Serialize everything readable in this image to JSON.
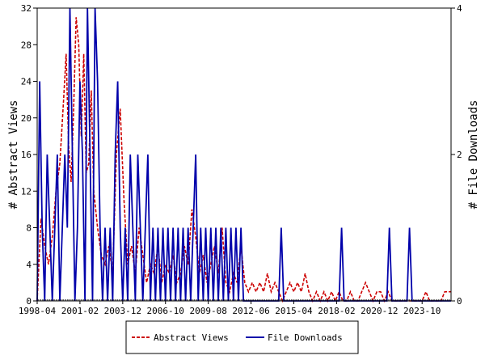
{
  "chart_data": {
    "type": "line",
    "ylabel_left": "# Abstract Views",
    "ylabel_right": "# File Downloads",
    "x_tick_labels": [
      "1998-04",
      "2001-02",
      "2003-12",
      "2006-10",
      "2009-08",
      "2012-06",
      "2015-04",
      "2018-02",
      "2020-12",
      "2023-10"
    ],
    "x_range": [
      "1998-04",
      "2025-09"
    ],
    "y_left": {
      "range": [
        0,
        32
      ],
      "ticks": [
        0,
        4,
        8,
        12,
        16,
        20,
        24,
        28,
        32
      ]
    },
    "y_right": {
      "range": [
        0,
        4
      ],
      "ticks": [
        0,
        2,
        4
      ]
    },
    "grid": false,
    "legend": "bottom-center",
    "colors": {
      "abstract_views": "#cc0000",
      "file_downloads": "#0000aa"
    },
    "series": [
      {
        "name": "Abstract Views",
        "axis": "left",
        "style": "dashed",
        "points": [
          [
            "1998-04",
            0
          ],
          [
            "1998-07",
            9
          ],
          [
            "1998-10",
            6
          ],
          [
            "1999-01",
            4
          ],
          [
            "1999-04",
            7
          ],
          [
            "1999-07",
            12
          ],
          [
            "1999-10",
            15
          ],
          [
            "2000-01",
            22
          ],
          [
            "2000-03",
            27
          ],
          [
            "2000-05",
            17
          ],
          [
            "2000-07",
            13
          ],
          [
            "2000-09",
            21
          ],
          [
            "2000-11",
            31
          ],
          [
            "2001-01",
            28
          ],
          [
            "2001-03",
            18
          ],
          [
            "2001-05",
            27
          ],
          [
            "2001-07",
            14
          ],
          [
            "2001-09",
            15
          ],
          [
            "2001-11",
            23
          ],
          [
            "2002-01",
            12
          ],
          [
            "2002-04",
            8
          ],
          [
            "2002-07",
            5
          ],
          [
            "2002-10",
            4
          ],
          [
            "2003-01",
            6
          ],
          [
            "2003-04",
            3
          ],
          [
            "2003-07",
            16
          ],
          [
            "2003-10",
            21
          ],
          [
            "2004-01",
            11
          ],
          [
            "2004-04",
            4
          ],
          [
            "2004-07",
            6
          ],
          [
            "2004-10",
            3
          ],
          [
            "2005-01",
            8
          ],
          [
            "2005-04",
            5
          ],
          [
            "2005-07",
            2
          ],
          [
            "2005-10",
            4
          ],
          [
            "2006-01",
            3
          ],
          [
            "2006-04",
            6
          ],
          [
            "2006-07",
            2
          ],
          [
            "2006-10",
            4
          ],
          [
            "2007-01",
            3
          ],
          [
            "2007-04",
            5
          ],
          [
            "2007-07",
            2
          ],
          [
            "2007-10",
            3
          ],
          [
            "2008-01",
            6
          ],
          [
            "2008-04",
            4
          ],
          [
            "2008-07",
            10
          ],
          [
            "2008-10",
            7
          ],
          [
            "2009-01",
            3
          ],
          [
            "2009-04",
            5
          ],
          [
            "2009-07",
            2
          ],
          [
            "2009-10",
            4
          ],
          [
            "2010-01",
            6
          ],
          [
            "2010-04",
            3
          ],
          [
            "2010-07",
            8
          ],
          [
            "2010-10",
            2
          ],
          [
            "2011-01",
            1
          ],
          [
            "2011-04",
            3
          ],
          [
            "2011-07",
            2
          ],
          [
            "2011-10",
            6
          ],
          [
            "2012-01",
            2
          ],
          [
            "2012-04",
            1
          ],
          [
            "2012-07",
            2
          ],
          [
            "2012-10",
            1
          ],
          [
            "2013-01",
            2
          ],
          [
            "2013-04",
            1
          ],
          [
            "2013-07",
            3
          ],
          [
            "2013-10",
            1
          ],
          [
            "2014-01",
            2
          ],
          [
            "2014-04",
            1
          ],
          [
            "2014-07",
            0
          ],
          [
            "2014-10",
            1
          ],
          [
            "2015-01",
            2
          ],
          [
            "2015-04",
            1
          ],
          [
            "2015-07",
            2
          ],
          [
            "2015-10",
            1
          ],
          [
            "2016-01",
            3
          ],
          [
            "2016-04",
            1
          ],
          [
            "2016-07",
            0
          ],
          [
            "2016-10",
            1
          ],
          [
            "2017-01",
            0
          ],
          [
            "2017-04",
            1
          ],
          [
            "2017-07",
            0
          ],
          [
            "2017-10",
            1
          ],
          [
            "2018-01",
            0
          ],
          [
            "2018-04",
            1
          ],
          [
            "2018-07",
            0
          ],
          [
            "2018-10",
            0
          ],
          [
            "2019-01",
            1
          ],
          [
            "2019-04",
            0
          ],
          [
            "2019-07",
            0
          ],
          [
            "2019-10",
            1
          ],
          [
            "2020-01",
            2
          ],
          [
            "2020-04",
            1
          ],
          [
            "2020-07",
            0
          ],
          [
            "2020-10",
            1
          ],
          [
            "2021-01",
            1
          ],
          [
            "2021-04",
            0
          ],
          [
            "2021-07",
            1
          ],
          [
            "2021-10",
            0
          ],
          [
            "2022-01",
            0
          ],
          [
            "2022-04",
            0
          ],
          [
            "2022-07",
            0
          ],
          [
            "2022-10",
            0
          ],
          [
            "2023-01",
            0
          ],
          [
            "2023-04",
            0
          ],
          [
            "2023-07",
            0
          ],
          [
            "2023-10",
            0
          ],
          [
            "2024-01",
            1
          ],
          [
            "2024-04",
            0
          ],
          [
            "2024-07",
            0
          ],
          [
            "2024-10",
            0
          ],
          [
            "2025-01",
            0
          ],
          [
            "2025-04",
            1
          ],
          [
            "2025-09",
            1
          ]
        ]
      },
      {
        "name": "File Downloads",
        "axis": "right",
        "style": "solid",
        "points": [
          [
            "1998-04",
            0
          ],
          [
            "1998-06",
            3
          ],
          [
            "1998-08",
            1
          ],
          [
            "1998-10",
            0
          ],
          [
            "1998-12",
            2
          ],
          [
            "1999-02",
            1
          ],
          [
            "1999-04",
            0
          ],
          [
            "1999-06",
            1
          ],
          [
            "1999-08",
            2
          ],
          [
            "1999-10",
            0
          ],
          [
            "1999-12",
            1
          ],
          [
            "2000-02",
            2
          ],
          [
            "2000-04",
            1
          ],
          [
            "2000-06",
            4
          ],
          [
            "2000-08",
            2
          ],
          [
            "2000-10",
            0
          ],
          [
            "2000-12",
            1
          ],
          [
            "2001-02",
            3
          ],
          [
            "2001-04",
            2
          ],
          [
            "2001-06",
            0
          ],
          [
            "2001-08",
            4
          ],
          [
            "2001-10",
            2
          ],
          [
            "2001-12",
            0
          ],
          [
            "2002-02",
            4
          ],
          [
            "2002-04",
            3
          ],
          [
            "2002-06",
            1
          ],
          [
            "2002-08",
            0
          ],
          [
            "2002-10",
            1
          ],
          [
            "2002-12",
            0
          ],
          [
            "2003-02",
            1
          ],
          [
            "2003-04",
            0
          ],
          [
            "2003-06",
            2
          ],
          [
            "2003-08",
            3
          ],
          [
            "2003-10",
            1
          ],
          [
            "2003-12",
            0
          ],
          [
            "2004-02",
            1
          ],
          [
            "2004-04",
            0
          ],
          [
            "2004-06",
            2
          ],
          [
            "2004-08",
            1
          ],
          [
            "2004-10",
            0
          ],
          [
            "2004-12",
            2
          ],
          [
            "2005-02",
            1
          ],
          [
            "2005-04",
            0
          ],
          [
            "2005-06",
            1
          ],
          [
            "2005-08",
            2
          ],
          [
            "2005-10",
            0
          ],
          [
            "2005-12",
            1
          ],
          [
            "2006-02",
            0
          ],
          [
            "2006-04",
            1
          ],
          [
            "2006-06",
            0
          ],
          [
            "2006-08",
            1
          ],
          [
            "2006-10",
            0
          ],
          [
            "2006-12",
            1
          ],
          [
            "2007-02",
            0
          ],
          [
            "2007-04",
            1
          ],
          [
            "2007-06",
            0
          ],
          [
            "2007-08",
            1
          ],
          [
            "2007-10",
            0
          ],
          [
            "2007-12",
            1
          ],
          [
            "2008-02",
            0
          ],
          [
            "2008-04",
            1
          ],
          [
            "2008-06",
            0
          ],
          [
            "2008-08",
            1
          ],
          [
            "2008-10",
            2
          ],
          [
            "2008-12",
            0
          ],
          [
            "2009-02",
            1
          ],
          [
            "2009-04",
            0
          ],
          [
            "2009-06",
            1
          ],
          [
            "2009-08",
            0
          ],
          [
            "2009-10",
            1
          ],
          [
            "2009-12",
            0
          ],
          [
            "2010-02",
            1
          ],
          [
            "2010-04",
            0
          ],
          [
            "2010-06",
            1
          ],
          [
            "2010-08",
            0
          ],
          [
            "2010-10",
            1
          ],
          [
            "2010-12",
            0
          ],
          [
            "2011-02",
            1
          ],
          [
            "2011-04",
            0
          ],
          [
            "2011-06",
            1
          ],
          [
            "2011-08",
            0
          ],
          [
            "2011-10",
            1
          ],
          [
            "2011-12",
            0
          ],
          [
            "2012-02",
            0
          ],
          [
            "2012-04",
            0
          ],
          [
            "2012-06",
            0
          ],
          [
            "2012-08",
            0
          ],
          [
            "2012-10",
            0
          ],
          [
            "2012-12",
            0
          ],
          [
            "2013-02",
            0
          ],
          [
            "2013-04",
            0
          ],
          [
            "2013-06",
            0
          ],
          [
            "2013-08",
            0
          ],
          [
            "2013-10",
            0
          ],
          [
            "2013-12",
            0
          ],
          [
            "2014-02",
            0
          ],
          [
            "2014-04",
            0
          ],
          [
            "2014-06",
            1
          ],
          [
            "2014-08",
            0
          ],
          [
            "2014-10",
            0
          ],
          [
            "2014-12",
            0
          ],
          [
            "2015-02",
            0
          ],
          [
            "2015-04",
            0
          ],
          [
            "2015-06",
            0
          ],
          [
            "2015-08",
            0
          ],
          [
            "2015-10",
            0
          ],
          [
            "2015-12",
            0
          ],
          [
            "2016-02",
            0
          ],
          [
            "2016-04",
            0
          ],
          [
            "2016-06",
            0
          ],
          [
            "2016-08",
            0
          ],
          [
            "2016-10",
            0
          ],
          [
            "2016-12",
            0
          ],
          [
            "2017-02",
            0
          ],
          [
            "2017-04",
            0
          ],
          [
            "2017-06",
            0
          ],
          [
            "2017-08",
            0
          ],
          [
            "2017-10",
            0
          ],
          [
            "2017-12",
            0
          ],
          [
            "2018-02",
            0
          ],
          [
            "2018-04",
            0
          ],
          [
            "2018-06",
            1
          ],
          [
            "2018-08",
            0
          ],
          [
            "2018-10",
            0
          ],
          [
            "2018-12",
            0
          ],
          [
            "2019-02",
            0
          ],
          [
            "2019-04",
            0
          ],
          [
            "2019-06",
            0
          ],
          [
            "2019-08",
            0
          ],
          [
            "2019-10",
            0
          ],
          [
            "2019-12",
            0
          ],
          [
            "2020-02",
            0
          ],
          [
            "2020-04",
            0
          ],
          [
            "2020-06",
            0
          ],
          [
            "2020-08",
            0
          ],
          [
            "2020-10",
            0
          ],
          [
            "2020-12",
            0
          ],
          [
            "2021-02",
            0
          ],
          [
            "2021-04",
            0
          ],
          [
            "2021-06",
            0
          ],
          [
            "2021-08",
            1
          ],
          [
            "2021-10",
            0
          ],
          [
            "2021-12",
            0
          ],
          [
            "2022-02",
            0
          ],
          [
            "2022-04",
            0
          ],
          [
            "2022-06",
            0
          ],
          [
            "2022-08",
            0
          ],
          [
            "2022-10",
            0
          ],
          [
            "2022-12",
            1
          ],
          [
            "2023-02",
            0
          ],
          [
            "2023-04",
            0
          ],
          [
            "2023-06",
            0
          ],
          [
            "2023-08",
            0
          ],
          [
            "2023-10",
            0
          ],
          [
            "2023-12",
            0
          ],
          [
            "2024-02",
            0
          ],
          [
            "2024-04",
            0
          ],
          [
            "2024-06",
            0
          ],
          [
            "2024-08",
            0
          ],
          [
            "2024-10",
            0
          ],
          [
            "2024-12",
            0
          ],
          [
            "2025-02",
            0
          ],
          [
            "2025-04",
            0
          ],
          [
            "2025-06",
            0
          ],
          [
            "2025-09",
            0
          ]
        ]
      }
    ]
  }
}
